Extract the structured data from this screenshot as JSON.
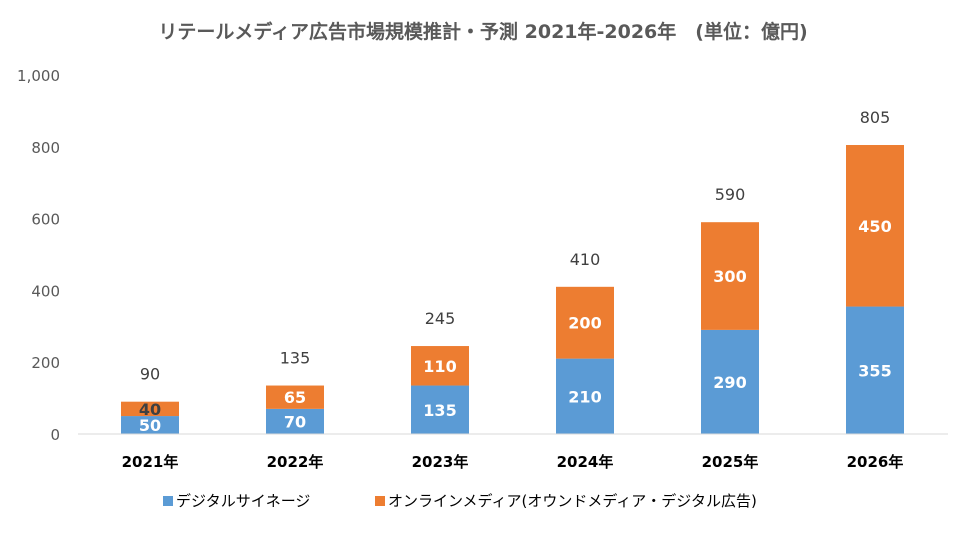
{
  "chart_data": {
    "type": "bar",
    "stacked": true,
    "title": "リテールメディア広告市場規模推計・予測 2021年-2026年　(単位：億円)",
    "categories": [
      "2021年",
      "2022年",
      "2023年",
      "2024年",
      "2025年",
      "2026年"
    ],
    "series": [
      {
        "name": "デジタルサイネージ",
        "color": "#5b9bd5",
        "values": [
          50,
          70,
          135,
          210,
          290,
          355
        ]
      },
      {
        "name": "オンラインメディア(オウンドメディア・デジタル広告)",
        "color": "#ed7d31",
        "values": [
          40,
          65,
          110,
          200,
          300,
          450
        ]
      }
    ],
    "totals": [
      90,
      135,
      245,
      410,
      590,
      805
    ],
    "ylim": [
      0,
      1000
    ],
    "yticks": [
      0,
      200,
      400,
      600,
      800,
      1000
    ],
    "ytick_labels": [
      "0",
      "200",
      "400",
      "600",
      "800",
      "1,000"
    ],
    "grid": false,
    "legend_position": "bottom"
  }
}
